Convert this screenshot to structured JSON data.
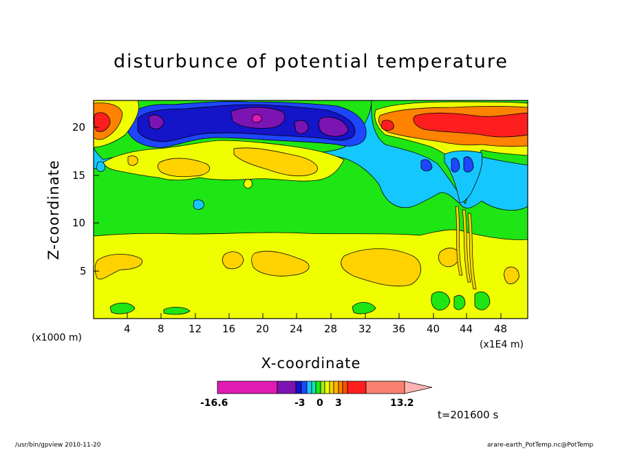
{
  "chart_data": {
    "type": "heatmap",
    "title": "disturbunce of potential temperature",
    "xlabel": "X-coordinate",
    "ylabel": "Z-coordinate",
    "x_unit_left": "(x1000 m)",
    "x_unit_right": "(x1E4 m)",
    "xlim": [
      0,
      52
    ],
    "ylim": [
      0,
      23
    ],
    "x_ticks": [
      "4",
      "8",
      "12",
      "16",
      "20",
      "24",
      "28",
      "32",
      "36",
      "40",
      "44",
      "48"
    ],
    "y_ticks": [
      "5",
      "10",
      "15",
      "20"
    ],
    "colorbar": {
      "min": -16.6,
      "max": 13.2,
      "labels": [
        "-16.6",
        "-3",
        "0",
        "3",
        "13.2"
      ],
      "colors": [
        "#e01ab4",
        "#7c14b4",
        "#1414c8",
        "#1e46ff",
        "#14c8ff",
        "#14e6aa",
        "#1ee614",
        "#a0f014",
        "#f0ff00",
        "#ffd200",
        "#ffb400",
        "#ff8200",
        "#ff5000",
        "#ff1e1e",
        "#fa8070",
        "#ffb4b4"
      ]
    },
    "regions": [
      {
        "name": "lower-band",
        "value": "0 to 1.5",
        "color": "#f0ff00"
      },
      {
        "name": "middle-band",
        "value": "-0.5 to 0",
        "color": "#1ee614"
      },
      {
        "name": "upper-left-cold-core",
        "value": "-16.6",
        "color": "#e01ab4"
      },
      {
        "name": "upper-right-warm-core",
        "value": "13.2",
        "color": "#ff1e1e"
      }
    ],
    "time": "t=201600 s"
  },
  "footer": {
    "left": "/usr/bin/gpview   2010-11-20",
    "right": "arare-earth_PotTemp.nc@PotTemp"
  }
}
